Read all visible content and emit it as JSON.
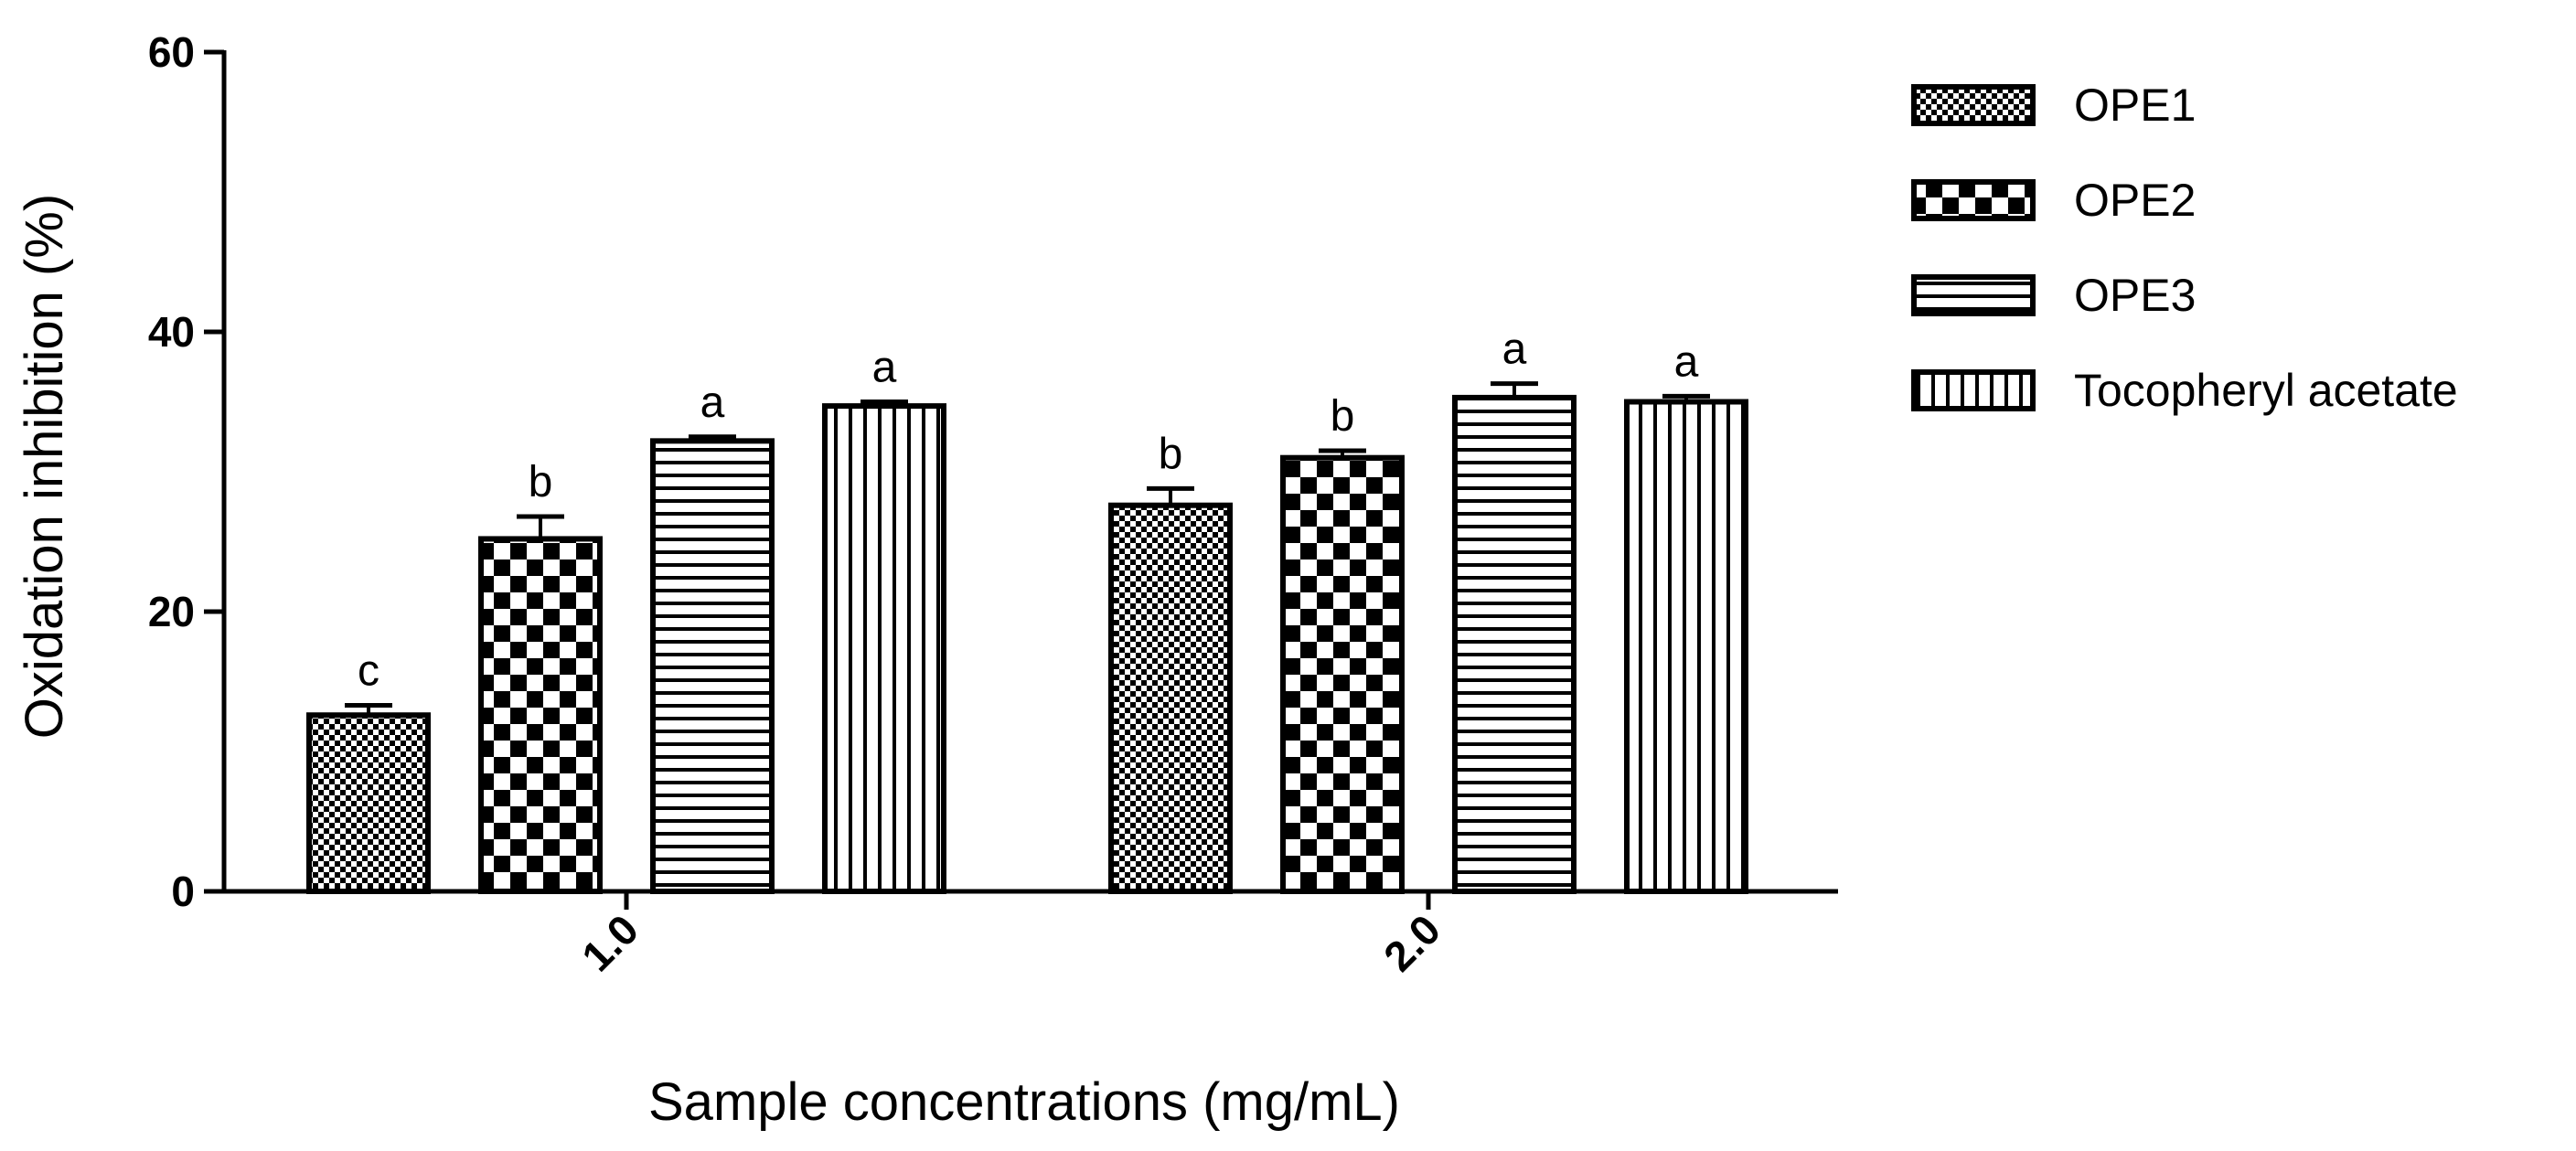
{
  "chart_data": {
    "type": "bar",
    "categories": [
      "1.0",
      "2.0"
    ],
    "series": [
      {
        "name": "OPE1",
        "pattern": "fine-check",
        "values": [
          12.6,
          27.6
        ],
        "errors": [
          0.7,
          1.2
        ],
        "labels": [
          "c",
          "b"
        ]
      },
      {
        "name": "OPE2",
        "pattern": "checker",
        "values": [
          25.2,
          31.0
        ],
        "errors": [
          1.6,
          0.5
        ],
        "labels": [
          "b",
          "b"
        ]
      },
      {
        "name": "OPE3",
        "pattern": "horizontal-stripes",
        "values": [
          32.2,
          35.3
        ],
        "errors": [
          0.3,
          1.0
        ],
        "labels": [
          "a",
          "a"
        ]
      },
      {
        "name": "Tocopheryl acetate",
        "pattern": "vertical-stripes",
        "values": [
          34.7,
          35.0
        ],
        "errors": [
          0.3,
          0.4
        ],
        "labels": [
          "a",
          "a"
        ]
      }
    ],
    "xlabel": "Sample concentrations (mg/mL)",
    "ylabel": "Oxidation inhibition (%)",
    "ylim": [
      0,
      60
    ],
    "yticks": [
      0,
      20,
      40,
      60
    ],
    "grid": false,
    "legend": "right",
    "colors": {
      "ink": "#000000",
      "background": "#ffffff"
    }
  }
}
